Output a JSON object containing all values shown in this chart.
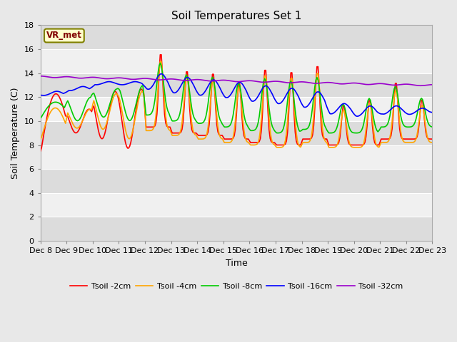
{
  "title": "Soil Temperatures Set 1",
  "xlabel": "Time",
  "ylabel": "Soil Temperature (C)",
  "ylim": [
    0,
    18
  ],
  "yticks": [
    0,
    2,
    4,
    6,
    8,
    10,
    12,
    14,
    16,
    18
  ],
  "xlim": [
    0,
    360
  ],
  "annotation_text": "VR_met",
  "annotation_bbox_facecolor": "#ffffcc",
  "annotation_bbox_edgecolor": "#808000",
  "colors": {
    "Tsoil -2cm": "#ff0000",
    "Tsoil -4cm": "#ffa500",
    "Tsoil -8cm": "#00cc00",
    "Tsoil -16cm": "#0000ff",
    "Tsoil -32cm": "#9900cc"
  },
  "xtick_labels": [
    "Dec 8",
    "Dec 9",
    "Dec 10",
    "Dec 11",
    "Dec 12",
    "Dec 13",
    "Dec 14",
    "Dec 15",
    "Dec 16",
    "Dec 17",
    "Dec 18",
    "Dec 19",
    "Dec 20",
    "Dec 21",
    "Dec 22",
    "Dec 23"
  ],
  "xtick_positions": [
    0,
    24,
    48,
    72,
    96,
    120,
    144,
    168,
    192,
    216,
    240,
    264,
    288,
    312,
    336,
    360
  ],
  "background_color": "#e8e8e8",
  "plot_bg_light": "#f0f0f0",
  "plot_bg_dark": "#dcdcdc",
  "grid_color": "#ffffff",
  "line_width": 1.2
}
